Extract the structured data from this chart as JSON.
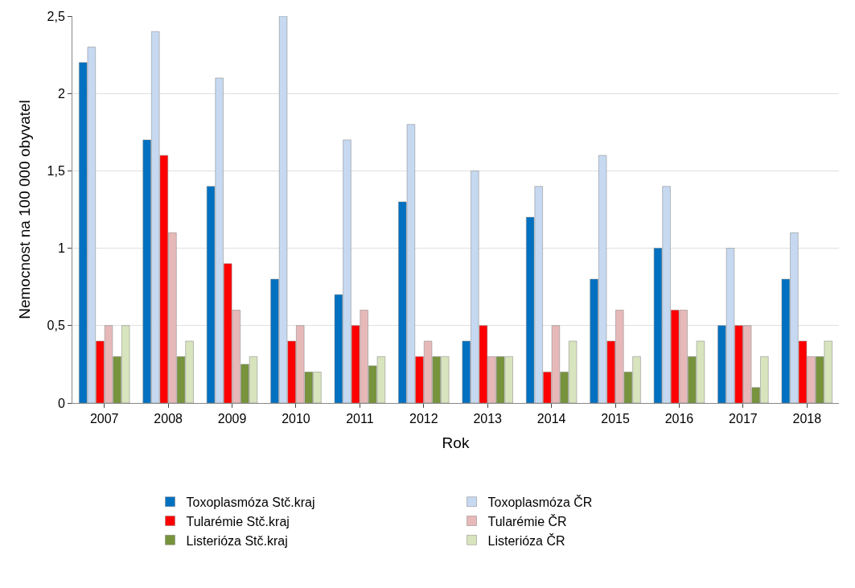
{
  "chart_data": {
    "type": "bar",
    "xlabel": "Rok",
    "ylabel": "Nemocnost na 100 000 obyvatel",
    "categories": [
      "2007",
      "2008",
      "2009",
      "2010",
      "2011",
      "2012",
      "2013",
      "2014",
      "2015",
      "2016",
      "2017",
      "2018"
    ],
    "series": [
      {
        "name": "Toxoplasmóza Stč.kraj",
        "color": "#0070c0",
        "values": [
          2.2,
          1.7,
          1.4,
          0.8,
          0.7,
          1.3,
          0.4,
          1.2,
          0.8,
          1.0,
          0.5,
          0.8
        ]
      },
      {
        "name": "Toxoplasmóza ČR",
        "color": "#c6d9f1",
        "values": [
          2.3,
          2.4,
          2.1,
          2.5,
          1.7,
          1.8,
          1.5,
          1.4,
          1.6,
          1.4,
          1.0,
          1.1
        ]
      },
      {
        "name": "Tularémie Stč.kraj",
        "color": "#ff0000",
        "values": [
          0.4,
          1.6,
          0.9,
          0.4,
          0.5,
          0.3,
          0.5,
          0.2,
          0.4,
          0.6,
          0.5,
          0.4
        ]
      },
      {
        "name": "Tularémie ČR",
        "color": "#e6b9b8",
        "values": [
          0.5,
          1.1,
          0.6,
          0.5,
          0.6,
          0.4,
          0.3,
          0.5,
          0.6,
          0.6,
          0.5,
          0.3
        ]
      },
      {
        "name": "Listerióza Stč.kraj",
        "color": "#77933c",
        "values": [
          0.3,
          0.3,
          0.25,
          0.2,
          0.24,
          0.3,
          0.3,
          0.2,
          0.2,
          0.3,
          0.1,
          0.3
        ]
      },
      {
        "name": "Listerióza ČR",
        "color": "#d7e4bd",
        "values": [
          0.5,
          0.4,
          0.3,
          0.2,
          0.3,
          0.3,
          0.3,
          0.4,
          0.3,
          0.4,
          0.3,
          0.4
        ]
      }
    ],
    "ylim": [
      0,
      2.5
    ],
    "yticks": [
      0,
      {
        "value": 0.5,
        "label": "0,5"
      },
      1,
      {
        "value": 1.5,
        "label": "1,5"
      },
      2,
      {
        "value": 2.5,
        "label": "2,5"
      }
    ],
    "grid": "y",
    "legend": "bottom"
  }
}
